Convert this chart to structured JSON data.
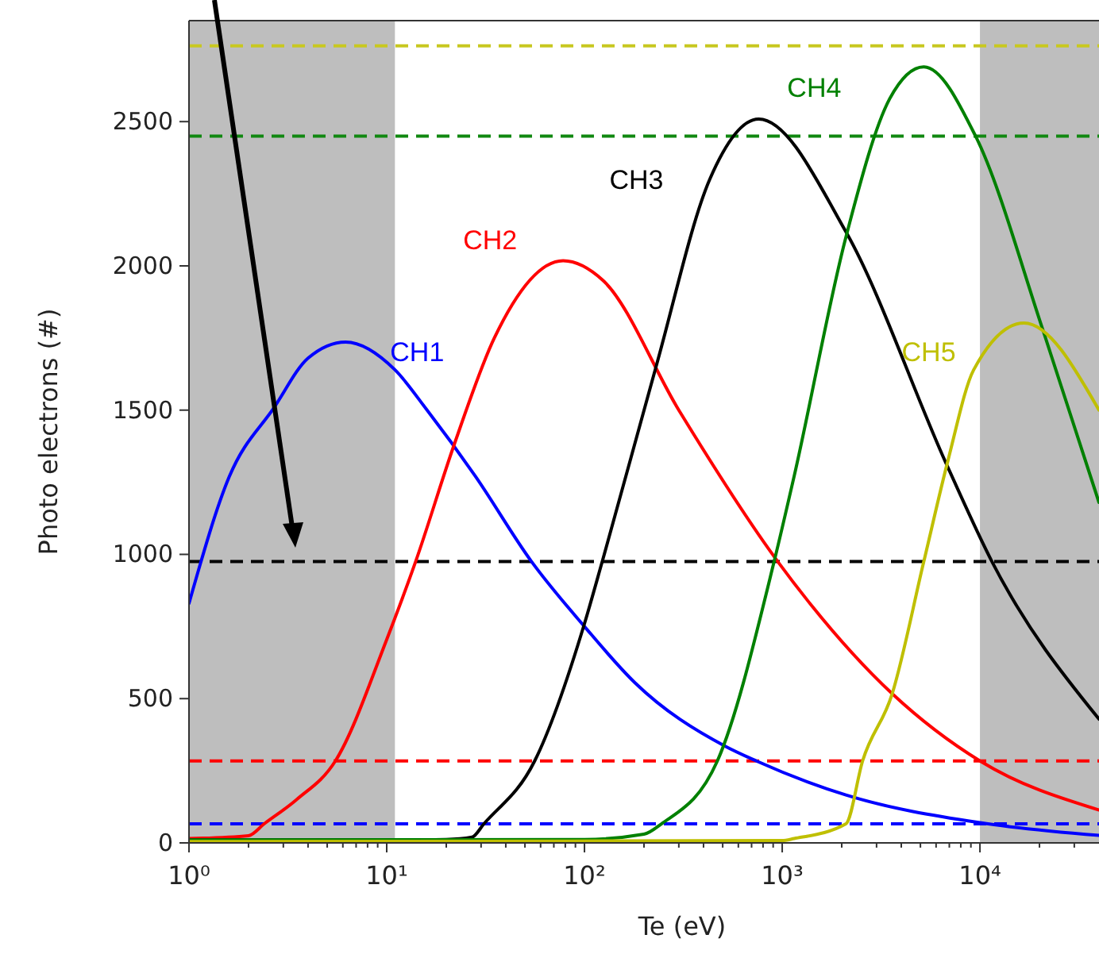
{
  "chart_data": {
    "type": "line",
    "xlabel": "Te (eV)",
    "ylabel": "Photo electrons (#)",
    "log": "x",
    "grid": false,
    "line_style": "solid",
    "marker": "none",
    "xlim": [
      1,
      40000
    ],
    "ylim": [
      0,
      2850
    ],
    "yticks": [
      0,
      500,
      1000,
      1500,
      2000,
      2500
    ],
    "xticks": [
      {
        "value": 1,
        "label": "10⁰"
      },
      {
        "value": 2,
        "label": null
      },
      {
        "value": 3,
        "label": null
      },
      {
        "value": 4,
        "label": null
      },
      {
        "value": 5,
        "label": null
      },
      {
        "value": 6,
        "label": null
      },
      {
        "value": 7,
        "label": null
      },
      {
        "value": 8,
        "label": null
      },
      {
        "value": 9,
        "label": null
      },
      {
        "value": 10,
        "label": "10¹"
      },
      {
        "value": 20,
        "label": null
      },
      {
        "value": 30,
        "label": null
      },
      {
        "value": 40,
        "label": null
      },
      {
        "value": 50,
        "label": null
      },
      {
        "value": 60,
        "label": null
      },
      {
        "value": 70,
        "label": null
      },
      {
        "value": 80,
        "label": null
      },
      {
        "value": 90,
        "label": null
      },
      {
        "value": 100,
        "label": "10²"
      },
      {
        "value": 200,
        "label": null
      },
      {
        "value": 300,
        "label": null
      },
      {
        "value": 400,
        "label": null
      },
      {
        "value": 500,
        "label": null
      },
      {
        "value": 600,
        "label": null
      },
      {
        "value": 700,
        "label": null
      },
      {
        "value": 800,
        "label": null
      },
      {
        "value": 900,
        "label": null
      },
      {
        "value": 1000,
        "label": "10³"
      },
      {
        "value": 2000,
        "label": null
      },
      {
        "value": 3000,
        "label": null
      },
      {
        "value": 4000,
        "label": null
      },
      {
        "value": 5000,
        "label": null
      },
      {
        "value": 6000,
        "label": null
      },
      {
        "value": 7000,
        "label": null
      },
      {
        "value": 8000,
        "label": null
      },
      {
        "value": 9000,
        "label": null
      },
      {
        "value": 10000,
        "label": "10⁴"
      },
      {
        "value": 20000,
        "label": null
      },
      {
        "value": 30000,
        "label": null
      }
    ],
    "series": [
      {
        "name": "CH1",
        "color": "#0000ff",
        "x": [
          1,
          1.6,
          2.7,
          4,
          6.2,
          11,
          16,
          28,
          54,
          100,
          180,
          515,
          740,
          2100,
          10000,
          40000
        ],
        "values": [
          830,
          1270,
          1510,
          1680,
          1736,
          1640,
          1500,
          1272,
          975,
          750,
          555,
          335,
          284,
          166,
          70,
          26
        ]
      },
      {
        "name": "CH2",
        "color": "#ff0000",
        "x": [
          1,
          2,
          2.4,
          3.5,
          5.5,
          10,
          14,
          22,
          35,
          78,
          124,
          300,
          950,
          3600,
          10000,
          40000
        ],
        "values": [
          15,
          25,
          66,
          150,
          284,
          705,
          975,
          1383,
          1750,
          2018,
          1950,
          1500,
          975,
          517,
          284,
          114
        ]
      },
      {
        "name": "CH3",
        "color": "#000000",
        "x": [
          1,
          10,
          20,
          27,
          31,
          56,
          100,
          123,
          230,
          430,
          760,
          2100,
          6900,
          11500,
          40000
        ],
        "values": [
          10,
          10,
          12,
          20,
          66,
          284,
          760,
          975,
          1650,
          2300,
          2509,
          2118,
          1300,
          975,
          429
        ]
      },
      {
        "name": "CH4",
        "color": "#008000",
        "x": [
          1,
          100,
          200,
          245,
          470,
          910,
          1150,
          2100,
          3500,
          5200,
          9500,
          21000,
          40000
        ],
        "values": [
          10,
          12,
          30,
          66,
          284,
          975,
          1272,
          2100,
          2580,
          2690,
          2450,
          1770,
          1180
        ]
      },
      {
        "name": "CH5",
        "color": "#bfbf00",
        "x": [
          1,
          1000,
          1150,
          2100,
          2550,
          3600,
          5200,
          6900,
          9300,
          16700,
          40000
        ],
        "values": [
          5,
          8,
          15,
          66,
          284,
          517,
          975,
          1327,
          1640,
          1802,
          1500
        ]
      }
    ],
    "ref_lines": [
      {
        "axis": "y",
        "value": 2763,
        "color": "#c8c820",
        "line_style": "dashed"
      },
      {
        "axis": "y",
        "value": 2450,
        "color": "#118811",
        "line_style": "dashed"
      },
      {
        "axis": "y",
        "value": 975,
        "color": "#000000",
        "line_style": "dashed"
      },
      {
        "axis": "y",
        "value": 284,
        "color": "#ff0000",
        "line_style": "dashed"
      },
      {
        "axis": "y",
        "value": 66,
        "color": "#0000ff",
        "line_style": "dashed"
      }
    ],
    "bands": [
      {
        "axis": "x",
        "from": 1,
        "to": 11,
        "color": "#bebebe"
      },
      {
        "axis": "x",
        "from": 10000,
        "to": 40000,
        "color": "#bebebe"
      }
    ]
  }
}
